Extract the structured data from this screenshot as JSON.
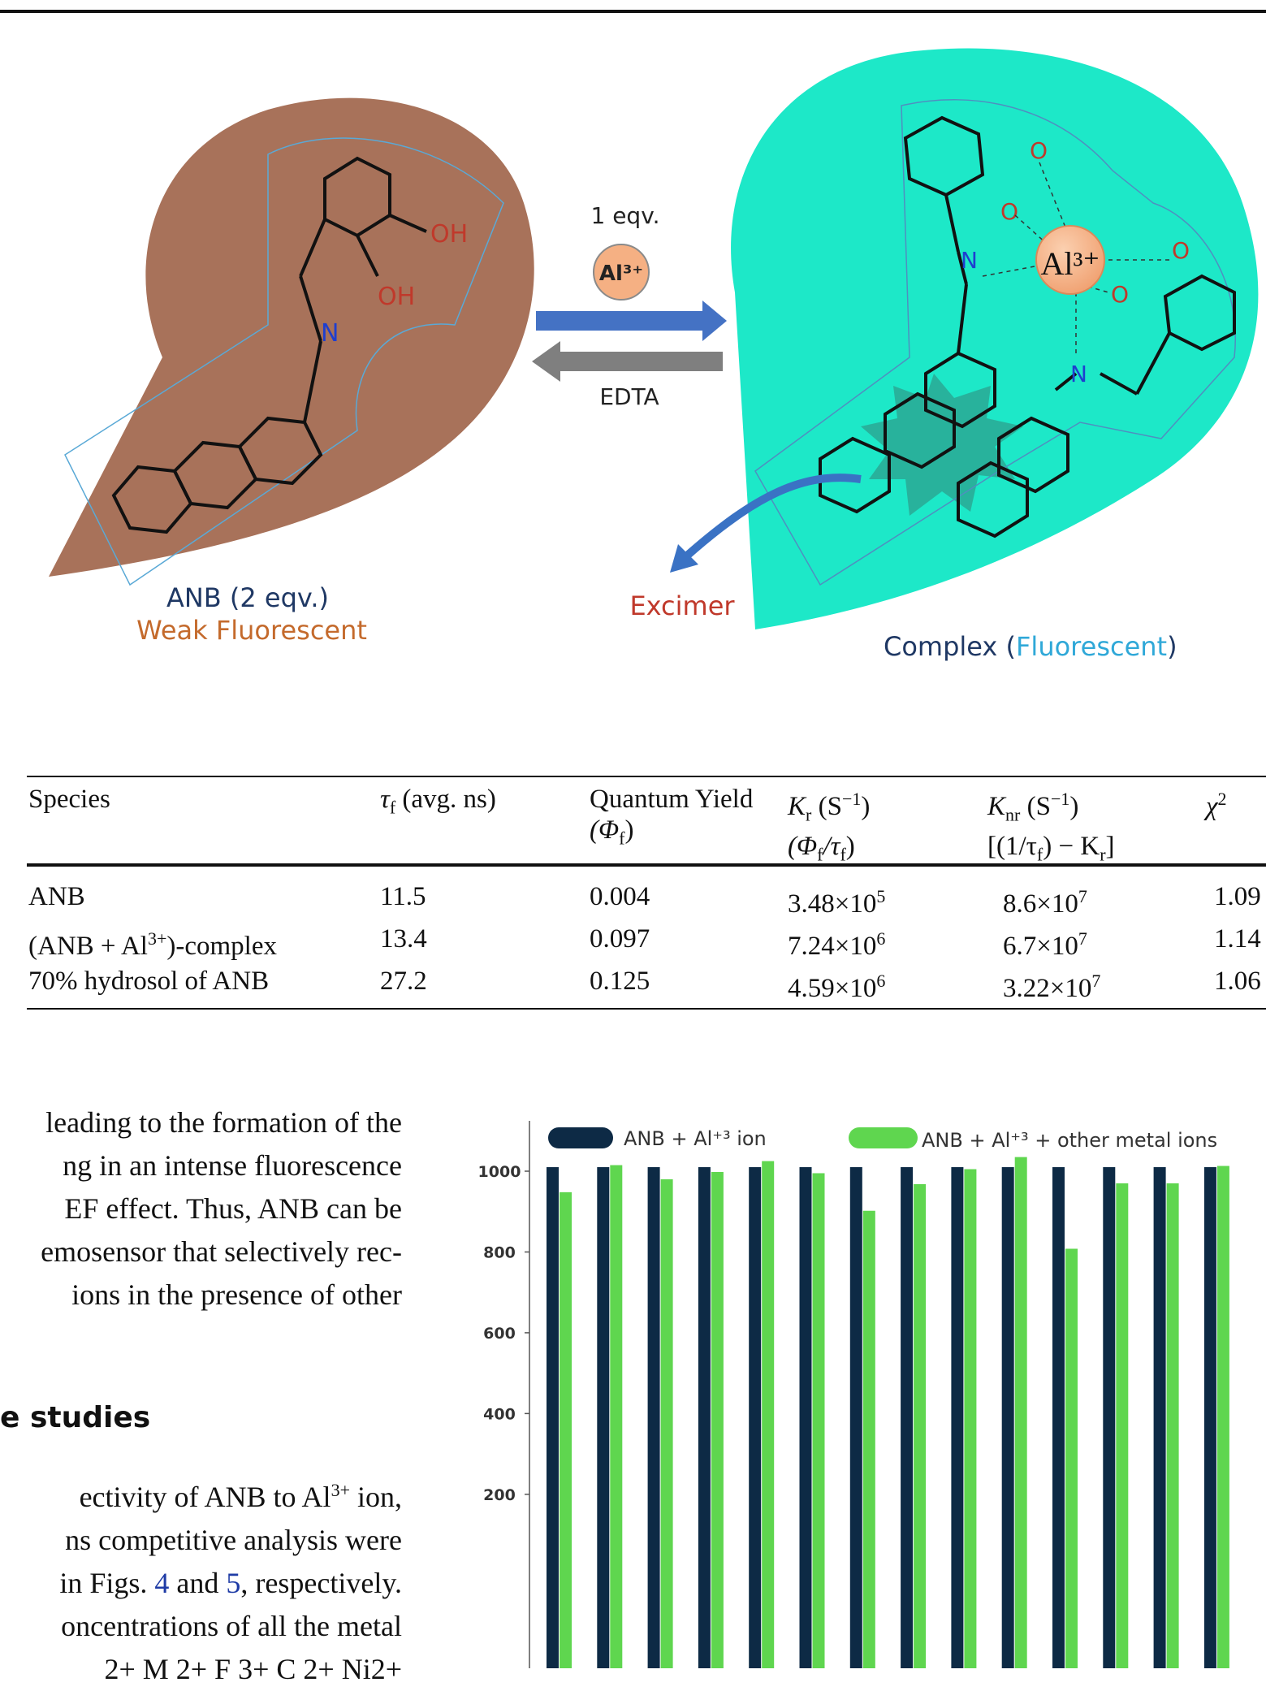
{
  "scheme": {
    "ligand_name": "ANB (2 eqv.)",
    "ligand_state": "Weak Fluorescent",
    "reagent_amount": "1 eqv.",
    "reagent_ion": "Al³⁺",
    "reverse_reagent": "EDTA",
    "excimer_label": "Excimer",
    "complex_label": "Complex",
    "complex_state": "Fluorescent",
    "complex_ion": "Al³⁺",
    "atom_oh": "OH",
    "atom_n": "N",
    "atom_o": "O",
    "colors": {
      "ligand_blob": "#a8725a",
      "complex_blob": "#1de8c8",
      "ion_circle": "#f5b083",
      "arrow_forward": "#4472c4",
      "arrow_reverse": "#7f7f7f"
    }
  },
  "table": {
    "headers": {
      "species": "Species",
      "tau": "τ",
      "tau_sub": "f",
      "tau_unit": " (avg. ns)",
      "qy": "Quantum Yield",
      "qy_sym": "(Φ",
      "qy_sub": "f",
      "qy_close": ")",
      "kr": "K",
      "kr_sub": "r",
      "kr_unit": " (S",
      "kr_exp": "−1",
      "kr_close": ")",
      "kr_def": "(Φ",
      "kr_def_sub1": "f",
      "kr_def_mid": "/τ",
      "kr_def_sub2": "f",
      "kr_def_close": ")",
      "knr": "K",
      "knr_sub": "nr",
      "knr_unit": " (S",
      "knr_exp": "−1",
      "knr_close": ")",
      "knr_def_a": "[(1/τ",
      "knr_def_sub1": "f",
      "knr_def_b": ") − K",
      "knr_def_sub2": "r",
      "knr_def_c": "]",
      "chi": "χ",
      "chi_exp": "2"
    },
    "rows": [
      {
        "species": "ANB",
        "species_sup": "",
        "species_end": "",
        "tau": "11.5",
        "qy": "0.004",
        "kr_base": "3.48×10",
        "kr_exp": "5",
        "knr_base": "8.6×10",
        "knr_exp": "7",
        "chi": "1.09"
      },
      {
        "species": "(ANB + Al",
        "species_sup": "3+",
        "species_end": ")-complex",
        "tau": "13.4",
        "qy": "0.097",
        "kr_base": "7.24×10",
        "kr_exp": "6",
        "knr_base": "6.7×10",
        "knr_exp": "7",
        "chi": "1.14"
      },
      {
        "species": "70% hydrosol of ANB",
        "species_sup": "",
        "species_end": "",
        "tau": "27.2",
        "qy": "0.125",
        "kr_base": "4.59×10",
        "kr_exp": "6",
        "knr_base": "3.22×10",
        "knr_exp": "7",
        "chi": "1.06"
      }
    ]
  },
  "text": {
    "p1": [
      "leading to the formation of the",
      "ng in an intense fluorescence",
      "EF effect. Thus, ANB can be",
      "emosensor that selectively rec-",
      "ions in the presence of other"
    ],
    "heading": "e studies",
    "p2_l1a": "ectivity of ANB to Al",
    "p2_l1sup": "3+",
    "p2_l1b": " ion,",
    "p2_l2": "ns competitive analysis were",
    "p2_l3a": "in Figs. ",
    "p2_l3fig4": "4",
    "p2_l3b": " and ",
    "p2_l3fig5": "5",
    "p2_l3c": ", respectively.",
    "p2_l4": "oncentrations of all the metal",
    "p2_l5": "2+  M  2+  F  3+  C  2+  Ni2+"
  },
  "chart_data": {
    "type": "bar",
    "series": [
      {
        "name": "ANB + Al⁺³ ion",
        "color": "#0d2a45",
        "values": [
          1010,
          1010,
          1010,
          1010,
          1010,
          1010,
          1010,
          1010,
          1010,
          1010,
          1010,
          1010,
          1010,
          1010
        ]
      },
      {
        "name": "ANB + Al⁺³ + other metal ions",
        "color": "#5fd64f",
        "values": [
          948,
          1015,
          980,
          998,
          1025,
          995,
          902,
          968,
          1005,
          1035,
          808,
          970,
          970,
          1013
        ]
      }
    ],
    "ylim": [
      0,
      1050
    ],
    "yticks": [
      "1000",
      "800",
      "600",
      "400",
      "200"
    ],
    "legend_position": "top"
  }
}
